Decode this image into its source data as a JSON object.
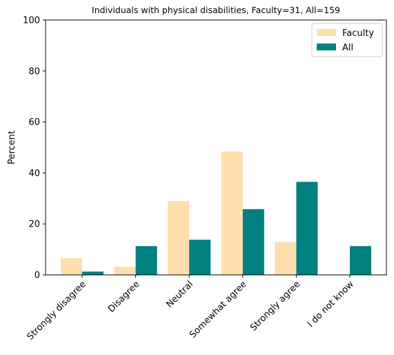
{
  "chart_data": {
    "type": "bar",
    "title": "Individuals with physical disabilities, Faculty=31, All=159",
    "xlabel": "",
    "ylabel": "Percent",
    "ylim": [
      0,
      100
    ],
    "yticks": [
      0,
      20,
      40,
      60,
      80,
      100
    ],
    "categories": [
      "Strongly disagree",
      "Disagree",
      "Neutral",
      "Somewhat agree",
      "Strongly agree",
      "I do not know"
    ],
    "series": [
      {
        "name": "Faculty",
        "color": "#ffdead",
        "values": [
          6.5,
          3.2,
          29.0,
          48.4,
          12.9,
          0.0
        ]
      },
      {
        "name": "All",
        "color": "#008080",
        "values": [
          1.3,
          11.3,
          13.8,
          25.8,
          36.5,
          11.3
        ]
      }
    ],
    "legend": {
      "position": "top-right"
    },
    "grid": false
  }
}
